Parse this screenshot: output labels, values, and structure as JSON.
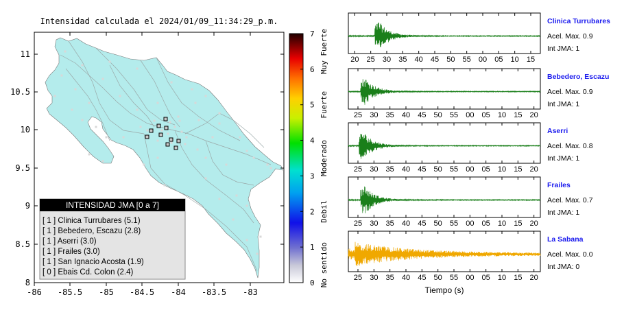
{
  "map": {
    "title": "Intensidad calculada el 2024/01/09_11:34:29_p.m.",
    "x_ticks": [
      "-86",
      "-85.5",
      "-85",
      "-84.5",
      "-84",
      "-83.5",
      "-83"
    ],
    "y_ticks": [
      "11",
      "10.5",
      "10",
      "9.5",
      "9",
      "8.5",
      "8"
    ],
    "land_color": "#b4ecec",
    "legend": {
      "header": "INTENSIDAD JMA [0 a 7]",
      "entries": [
        {
          "text": "[ 1 ]  Clinica Turrubares (5.1)"
        },
        {
          "text": "[ 1 ]  Bebedero, Escazu (2.8)"
        },
        {
          "text": "[ 1 ]  Aserri (3.0)"
        },
        {
          "text": "[ 1 ]  Frailes (3.0)"
        },
        {
          "text": "[ 1 ]  San Ignacio Acosta (1.9)"
        },
        {
          "text": "[ 0 ]  Ebais Cd. Colon (2.4)"
        }
      ]
    }
  },
  "colorbar": {
    "ticks": [
      "7",
      "6",
      "5",
      "4",
      "3",
      "2",
      "1",
      "0"
    ],
    "labels": [
      "Muy Fuerte",
      "Fuerte",
      "Moderado",
      "Debil",
      "No sentido"
    ]
  },
  "chart_data": {
    "type": "line",
    "xlabel": "Tiempo (s)",
    "stations": [
      {
        "name": "Clinica Turrubares",
        "accel_label": "Acel. Max. 0.9",
        "jma_label": "Int JMA: 1",
        "color": "#1a7f1a",
        "ticks": [
          "20",
          "25",
          "30",
          "35",
          "40",
          "45",
          "50",
          "55",
          "00",
          "05",
          "10",
          "15"
        ],
        "x_range": [
          18,
          78
        ],
        "peak_time": 27.5,
        "amplitude": 0.9
      },
      {
        "name": "Bebedero, Escazu",
        "accel_label": "Acel. Max. 0.9",
        "jma_label": "Int JMA: 1",
        "color": "#1a7f1a",
        "ticks": [
          "25",
          "30",
          "35",
          "40",
          "45",
          "50",
          "55",
          "00",
          "05",
          "10",
          "15",
          "20"
        ],
        "x_range": [
          22,
          82
        ],
        "peak_time": 27,
        "amplitude": 0.9
      },
      {
        "name": "Aserri",
        "accel_label": "Acel. Max. 0.8",
        "jma_label": "Int JMA: 1",
        "color": "#1a7f1a",
        "ticks": [
          "25",
          "30",
          "35",
          "40",
          "45",
          "50",
          "55",
          "00",
          "05",
          "10",
          "15",
          "20"
        ],
        "x_range": [
          22,
          82
        ],
        "peak_time": 26.5,
        "amplitude": 0.8
      },
      {
        "name": "Frailes",
        "accel_label": "Acel. Max. 0.7",
        "jma_label": "Int JMA: 1",
        "color": "#1a7f1a",
        "ticks": [
          "25",
          "30",
          "35",
          "40",
          "45",
          "50",
          "55",
          "00",
          "05",
          "10",
          "15",
          "20"
        ],
        "x_range": [
          22,
          82
        ],
        "peak_time": 27,
        "amplitude": 0.7
      },
      {
        "name": "La Sabana",
        "accel_label": "Acel. Max. 0.0",
        "jma_label": "Int JMA: 0",
        "color": "#f0a800",
        "ticks": [
          "25",
          "30",
          "35",
          "40",
          "45",
          "50",
          "55",
          "00",
          "05",
          "10",
          "15",
          "20"
        ],
        "x_range": [
          22,
          82
        ],
        "peak_time": 29,
        "amplitude": 0.0
      }
    ]
  }
}
